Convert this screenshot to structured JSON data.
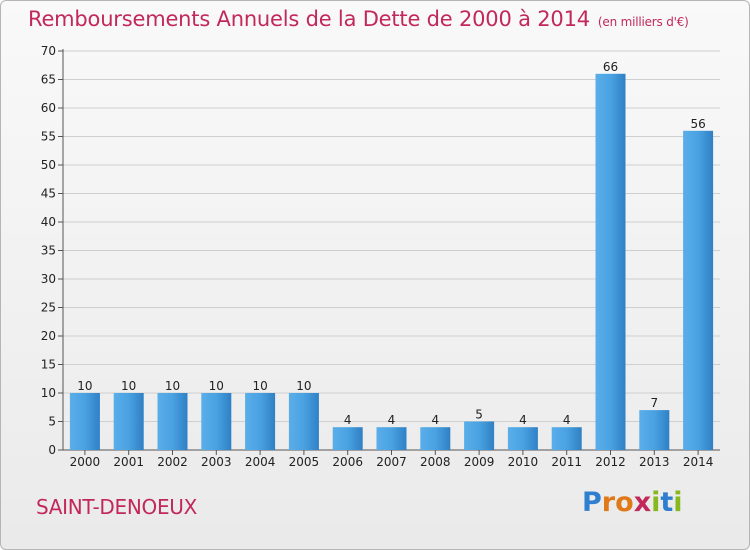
{
  "title": "Remboursements Annuels de la Dette de 2000 à 2014",
  "unit_note": "(en milliers d'€)",
  "commune": "SAINT-DENOEUX",
  "logo": {
    "text": "Proxiti",
    "letters": [
      {
        "ch": "P",
        "color": "#2e7fd0"
      },
      {
        "ch": "r",
        "color": "#e07a18"
      },
      {
        "ch": "o",
        "color": "#e07a18"
      },
      {
        "ch": "x",
        "color": "#c2285a"
      },
      {
        "ch": "i",
        "color": "#88b820"
      },
      {
        "ch": "t",
        "color": "#2e7fd0"
      },
      {
        "ch": "i",
        "color": "#88b820"
      }
    ]
  },
  "colors": {
    "bar": "#3f95d8",
    "bar_light": "#63b3ec",
    "bar_dark": "#2f7fc2",
    "title": "#c2285a",
    "grid": "#cfcfcf"
  },
  "chart_data": {
    "type": "bar",
    "title": "Remboursements Annuels de la Dette de 2000 à 2014",
    "categories": [
      "2000",
      "2001",
      "2002",
      "2003",
      "2004",
      "2005",
      "2006",
      "2007",
      "2008",
      "2009",
      "2010",
      "2011",
      "2012",
      "2013",
      "2014"
    ],
    "values": [
      10,
      10,
      10,
      10,
      10,
      10,
      4,
      4,
      4,
      5,
      4,
      4,
      66,
      7,
      56
    ],
    "ylim": [
      0,
      70
    ],
    "yticks": [
      0,
      5,
      10,
      15,
      20,
      25,
      30,
      35,
      40,
      45,
      50,
      55,
      60,
      65,
      70
    ],
    "grid": true,
    "data_labels": true
  }
}
